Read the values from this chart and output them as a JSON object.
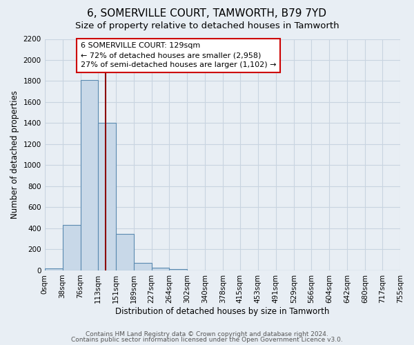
{
  "title": "6, SOMERVILLE COURT, TAMWORTH, B79 7YD",
  "subtitle": "Size of property relative to detached houses in Tamworth",
  "xlabel": "Distribution of detached houses by size in Tamworth",
  "ylabel": "Number of detached properties",
  "bin_labels": [
    "0sqm",
    "38sqm",
    "76sqm",
    "113sqm",
    "151sqm",
    "189sqm",
    "227sqm",
    "264sqm",
    "302sqm",
    "340sqm",
    "378sqm",
    "415sqm",
    "453sqm",
    "491sqm",
    "529sqm",
    "566sqm",
    "604sqm",
    "642sqm",
    "680sqm",
    "717sqm",
    "755sqm"
  ],
  "bin_edges": [
    0,
    38,
    76,
    113,
    151,
    189,
    227,
    264,
    302,
    340,
    378,
    415,
    453,
    491,
    529,
    566,
    604,
    642,
    680,
    717,
    755
  ],
  "bar_heights": [
    20,
    430,
    1810,
    1400,
    350,
    75,
    25,
    15,
    0,
    0,
    0,
    0,
    0,
    0,
    0,
    0,
    0,
    0,
    0,
    0
  ],
  "bar_color": "#c8d8e8",
  "bar_edge_color": "#5a8ab0",
  "vline_x": 129,
  "vline_color": "#8b0000",
  "annotation_line1": "6 SOMERVILLE COURT: 129sqm",
  "annotation_line2": "← 72% of detached houses are smaller (2,958)",
  "annotation_line3": "27% of semi-detached houses are larger (1,102) →",
  "annotation_box_color": "#ffffff",
  "annotation_box_edge": "#cc0000",
  "ylim": [
    0,
    2200
  ],
  "yticks": [
    0,
    200,
    400,
    600,
    800,
    1000,
    1200,
    1400,
    1600,
    1800,
    2000,
    2200
  ],
  "footer_line1": "Contains HM Land Registry data © Crown copyright and database right 2024.",
  "footer_line2": "Contains public sector information licensed under the Open Government Licence v3.0.",
  "bg_color": "#e8eef4",
  "grid_color": "#c8d4e0",
  "plot_bg_color": "#e8eef4",
  "title_fontsize": 11,
  "subtitle_fontsize": 9.5,
  "axis_label_fontsize": 8.5,
  "tick_fontsize": 7.5,
  "annotation_fontsize": 8,
  "footer_fontsize": 6.5
}
